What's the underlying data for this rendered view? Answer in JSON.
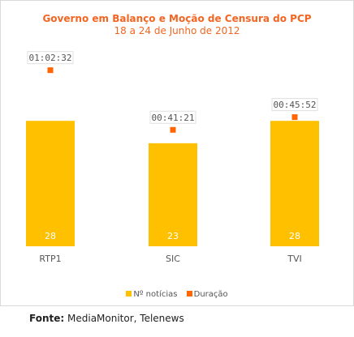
{
  "chart_data": {
    "type": "bar",
    "title": "Governo em Balanço e Moção de Censura do PCP",
    "subtitle": "18 a 24 de Junho de 2012",
    "categories": [
      "RTP1",
      "SIC",
      "TVI"
    ],
    "series": [
      {
        "name": "Nº notícias",
        "type": "bar",
        "color": "#ffc000",
        "values": [
          28,
          23,
          28
        ]
      },
      {
        "name": "Duração",
        "type": "scatter",
        "color": "#ff6600",
        "values": [
          "01:02:32",
          "00:41:21",
          "00:45:52"
        ]
      }
    ],
    "legend": "bottom-center",
    "grid": false
  },
  "legend": {
    "items": [
      {
        "label": "Nº notícias",
        "color": "#ffc000"
      },
      {
        "label": "Duração",
        "color": "#ff6600"
      }
    ]
  },
  "source": {
    "label": "Fonte:",
    "text": "MediaMonitor, Telenews"
  }
}
